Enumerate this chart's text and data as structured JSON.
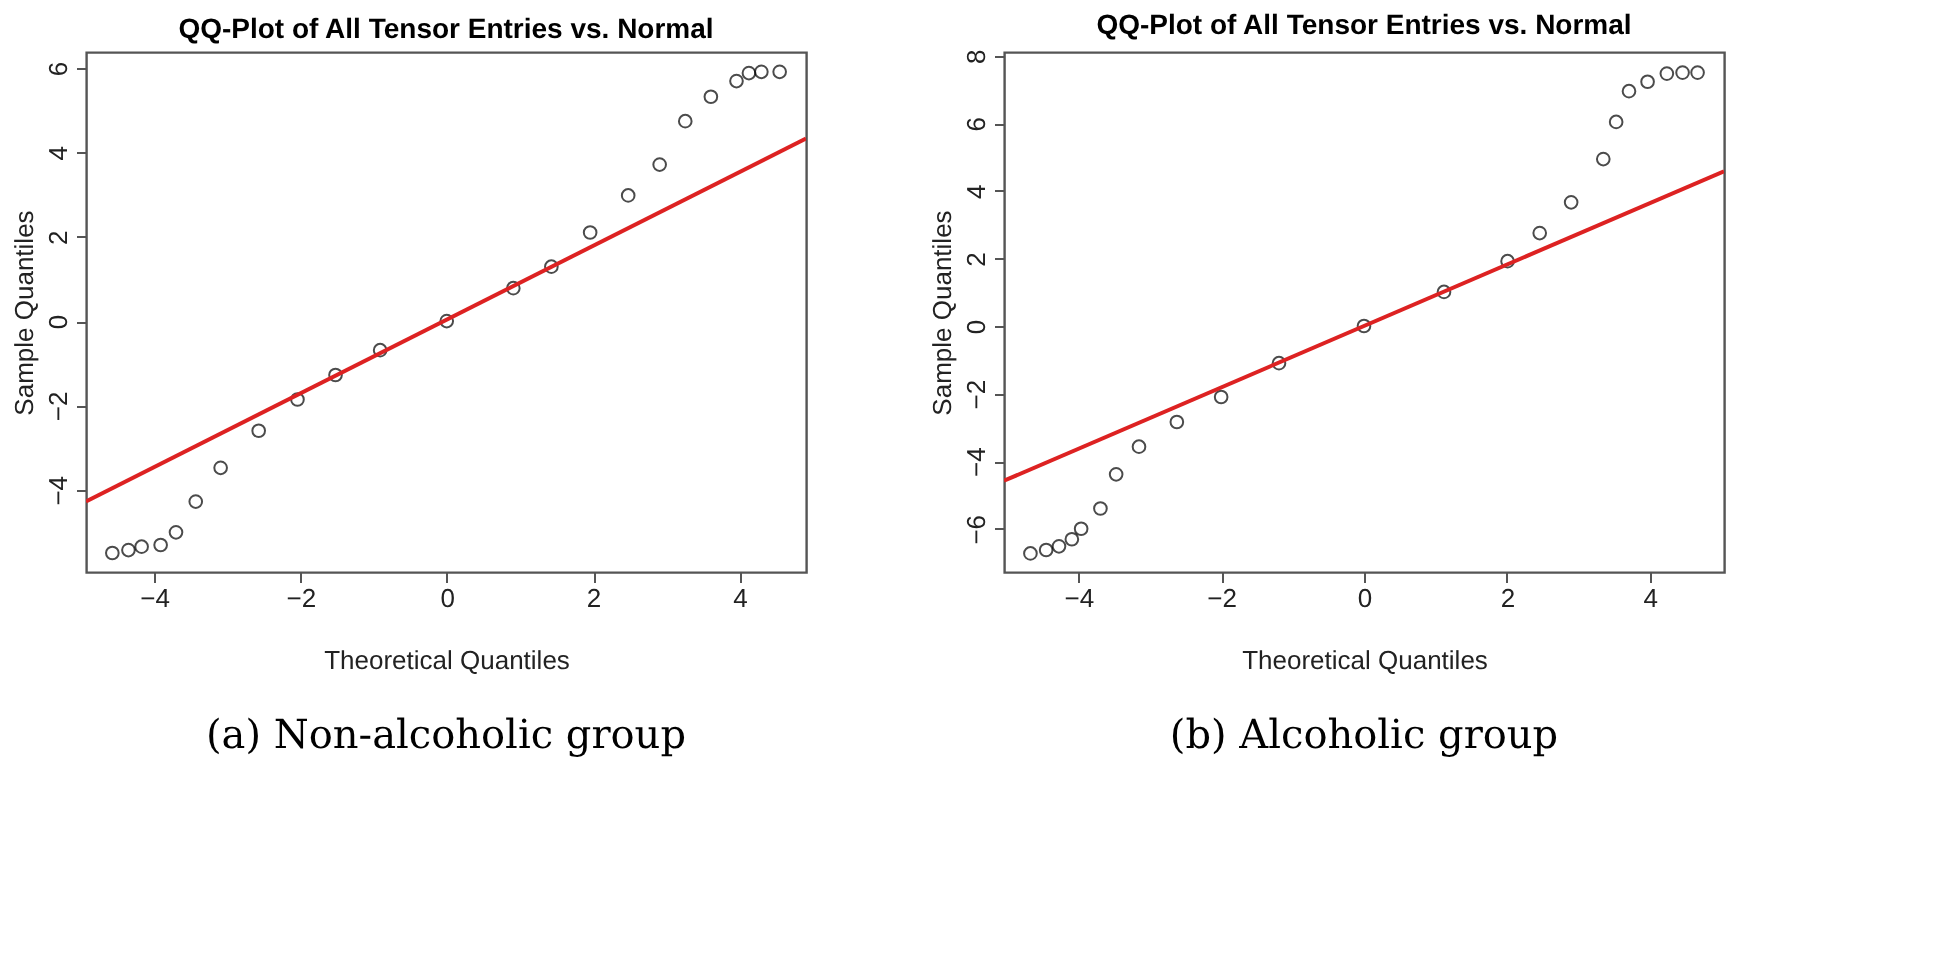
{
  "chart_data": [
    {
      "type": "scatter",
      "title": "QQ-Plot of All Tensor Entries vs. Normal",
      "xlabel": "Theoretical Quantiles",
      "ylabel": "Sample Quantiles",
      "annotations": [
        "(a) Non-alcoholic group"
      ],
      "grid": false,
      "xlim": [
        -4.93,
        4.91
      ],
      "ylim": [
        -5.95,
        6.38
      ],
      "xticks": [
        -4,
        -2,
        0,
        2,
        4
      ],
      "yticks": [
        -4,
        -2,
        0,
        2,
        4,
        6
      ],
      "series": [
        {
          "marker": "circle",
          "color": "#000000",
          "x": [
            -4.57,
            -4.35,
            -4.17,
            -3.91,
            -3.7,
            -3.43,
            -3.09,
            -2.57,
            -2.04,
            -1.52,
            -0.91,
            0,
            0.91,
            1.43,
            1.96,
            2.48,
            2.91,
            3.26,
            3.61,
            3.96,
            4.13,
            4.3,
            4.55
          ],
          "values": [
            -5.5,
            -5.43,
            -5.35,
            -5.31,
            -5.01,
            -4.28,
            -3.48,
            -2.6,
            -1.86,
            -1.28,
            -0.69,
            0,
            0.78,
            1.29,
            2.1,
            2.98,
            3.71,
            4.74,
            5.32,
            5.69,
            5.88,
            5.91,
            5.91
          ]
        },
        {
          "type": "line",
          "marker": "none",
          "line_style": "solid",
          "color": "#dd2222",
          "x": [
            -4.93,
            4.91
          ],
          "values": [
            -4.28,
            4.33
          ]
        }
      ]
    },
    {
      "type": "scatter",
      "title": "QQ-Plot of All Tensor Entries vs. Normal",
      "xlabel": "Theoretical Quantiles",
      "ylabel": "Sample Quantiles",
      "annotations": [
        "(b) Alcoholic group"
      ],
      "grid": false,
      "xlim": [
        -5.04,
        5.04
      ],
      "ylim": [
        -7.28,
        8.11
      ],
      "xticks": [
        -4,
        -2,
        0,
        2,
        4
      ],
      "yticks": [
        -6,
        -4,
        -2,
        0,
        2,
        4,
        6,
        8
      ],
      "series": [
        {
          "marker": "circle",
          "color": "#000000",
          "x": [
            -4.67,
            -4.45,
            -4.27,
            -4.09,
            -3.96,
            -3.69,
            -3.47,
            -3.15,
            -2.62,
            -2.0,
            -1.19,
            0,
            1.12,
            2.01,
            2.46,
            2.9,
            3.35,
            3.53,
            3.71,
            3.97,
            4.24,
            4.46,
            4.67
          ],
          "values": [
            -6.73,
            -6.63,
            -6.52,
            -6.31,
            -6.0,
            -5.4,
            -4.39,
            -3.57,
            -2.84,
            -2.1,
            -1.1,
            0,
            1.01,
            1.92,
            2.75,
            3.66,
            4.94,
            6.04,
            6.95,
            7.23,
            7.47,
            7.5,
            7.5
          ]
        },
        {
          "type": "line",
          "marker": "none",
          "line_style": "solid",
          "color": "#dd2222",
          "x": [
            -5.04,
            5.04
          ],
          "values": [
            -4.58,
            4.58
          ]
        }
      ]
    }
  ]
}
